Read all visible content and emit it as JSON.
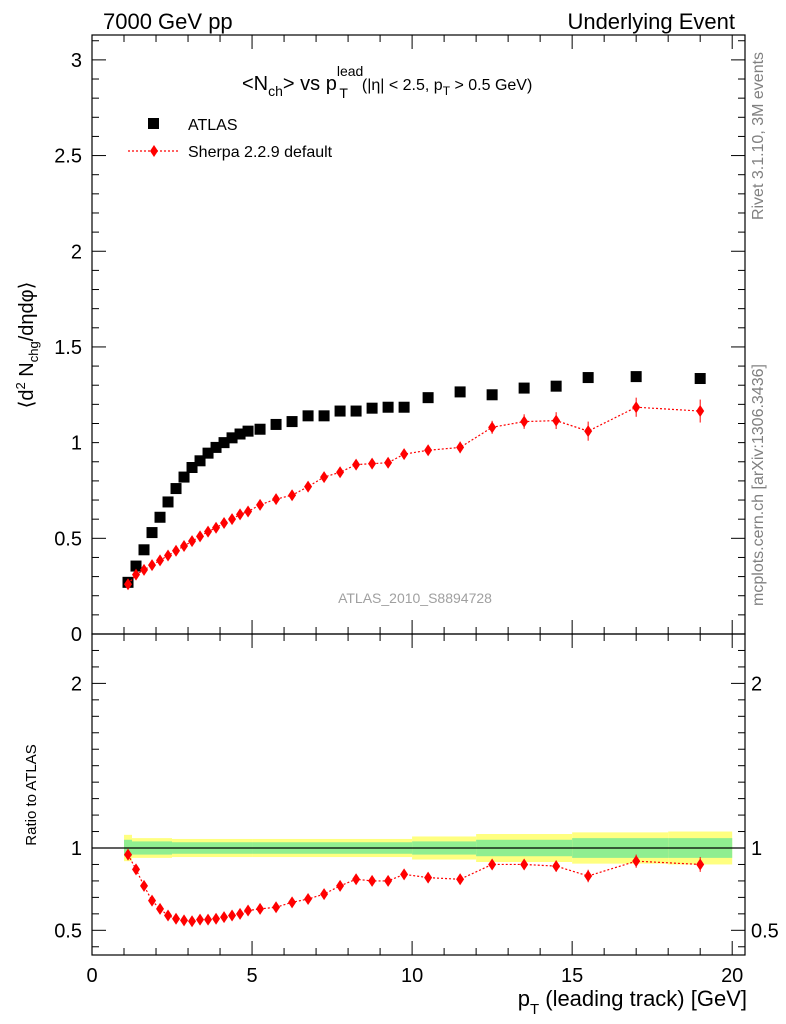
{
  "header": {
    "left": "7000 GeV pp",
    "right": "Underlying Event"
  },
  "side_labels": {
    "rivet": "Rivet 3.1.10,  3M events",
    "mcplots": "mcplots.cern.ch [arXiv:1306.3436]"
  },
  "chart_data": [
    {
      "type": "scatter",
      "title": {
        "open": "<N",
        "sub1": "ch",
        "mid": "> vs p",
        "sup": "lead",
        "sub2": "T",
        "cond_open": "(|η| < 2.5, p",
        "cond_sub": "T",
        "cond_close": " > 0.5 GeV)"
      },
      "ylabel": {
        "open": "⟨d",
        "sup": "2",
        "mid": " N",
        "sub": "chg",
        "close": "/dηdφ⟩"
      },
      "ylim": [
        0,
        3.13
      ],
      "yticks": [
        0.5,
        1,
        1.5,
        2,
        2.5,
        3
      ],
      "ytick_labels": [
        "0.5",
        "1",
        "1.5",
        "2",
        "2.5",
        "3"
      ],
      "zero_label": "0",
      "watermark": "ATLAS_2010_S8894728",
      "legend_position": "top-left",
      "series": [
        {
          "name": "ATLAS",
          "color": "#000000",
          "marker": "square",
          "x": [
            1.125,
            1.375,
            1.625,
            1.875,
            2.125,
            2.375,
            2.625,
            2.875,
            3.125,
            3.375,
            3.625,
            3.875,
            4.125,
            4.375,
            4.625,
            4.875,
            5.25,
            5.75,
            6.25,
            6.75,
            7.25,
            7.75,
            8.25,
            8.75,
            9.25,
            9.75,
            10.5,
            11.5,
            12.5,
            13.5,
            14.5,
            15.5,
            17.0,
            19.0
          ],
          "y": [
            0.27,
            0.355,
            0.44,
            0.53,
            0.61,
            0.69,
            0.76,
            0.82,
            0.87,
            0.905,
            0.945,
            0.975,
            1.0,
            1.025,
            1.045,
            1.06,
            1.07,
            1.095,
            1.11,
            1.14,
            1.14,
            1.165,
            1.165,
            1.18,
            1.185,
            1.185,
            1.235,
            1.265,
            1.25,
            1.285,
            1.295,
            1.34,
            1.345,
            1.335
          ]
        },
        {
          "name": "Sherpa 2.2.9 default",
          "color": "#ff0000",
          "marker": "diamond",
          "x": [
            1.125,
            1.375,
            1.625,
            1.875,
            2.125,
            2.375,
            2.625,
            2.875,
            3.125,
            3.375,
            3.625,
            3.875,
            4.125,
            4.375,
            4.625,
            4.875,
            5.25,
            5.75,
            6.25,
            6.75,
            7.25,
            7.75,
            8.25,
            8.75,
            9.25,
            9.75,
            10.5,
            11.5,
            12.5,
            13.5,
            14.5,
            15.5,
            17.0,
            19.0
          ],
          "y": [
            0.26,
            0.31,
            0.335,
            0.36,
            0.385,
            0.41,
            0.435,
            0.46,
            0.485,
            0.51,
            0.535,
            0.555,
            0.58,
            0.6,
            0.625,
            0.64,
            0.675,
            0.705,
            0.725,
            0.77,
            0.82,
            0.845,
            0.885,
            0.89,
            0.895,
            0.94,
            0.96,
            0.975,
            1.08,
            1.11,
            1.115,
            1.06,
            1.185,
            1.165
          ],
          "yerr": [
            0.01,
            0.01,
            0.01,
            0.01,
            0.01,
            0.01,
            0.01,
            0.01,
            0.01,
            0.01,
            0.01,
            0.01,
            0.01,
            0.01,
            0.012,
            0.012,
            0.012,
            0.014,
            0.014,
            0.016,
            0.016,
            0.018,
            0.02,
            0.02,
            0.022,
            0.024,
            0.026,
            0.03,
            0.034,
            0.038,
            0.044,
            0.05,
            0.05,
            0.06
          ]
        }
      ]
    },
    {
      "type": "scatter",
      "ylabel": "Ratio to ATLAS",
      "xlabel": {
        "p": "p",
        "sub": "T",
        "rest": " (leading track) [GeV]"
      },
      "xlim": [
        0,
        20.4
      ],
      "xticks": [
        0,
        5,
        10,
        15,
        20
      ],
      "xtick_labels": [
        "0",
        "5",
        "10",
        "15",
        "20"
      ],
      "ylim": [
        0.35,
        2.3
      ],
      "yticks": [
        0.5,
        1,
        2
      ],
      "ytick_labels": [
        "0.5",
        "1",
        "2"
      ],
      "reference_line": 1,
      "bands": {
        "color_inner": "#90ee90",
        "color_outer": "#ffff80",
        "edges": [
          1.0,
          1.25,
          2.5,
          5.0,
          10.0,
          12.0,
          15.0,
          18.0,
          20.0
        ],
        "inner": [
          0.05,
          0.04,
          0.035,
          0.035,
          0.04,
          0.05,
          0.06,
          0.06
        ],
        "outer": [
          0.08,
          0.06,
          0.055,
          0.055,
          0.07,
          0.085,
          0.095,
          0.1
        ]
      },
      "series": [
        {
          "name": "Sherpa 2.2.9 default",
          "color": "#ff0000",
          "marker": "diamond",
          "x": [
            1.125,
            1.375,
            1.625,
            1.875,
            2.125,
            2.375,
            2.625,
            2.875,
            3.125,
            3.375,
            3.625,
            3.875,
            4.125,
            4.375,
            4.625,
            4.875,
            5.25,
            5.75,
            6.25,
            6.75,
            7.25,
            7.75,
            8.25,
            8.75,
            9.25,
            9.75,
            10.5,
            11.5,
            12.5,
            13.5,
            14.5,
            15.5,
            17.0,
            19.0
          ],
          "y": [
            0.96,
            0.87,
            0.77,
            0.68,
            0.63,
            0.59,
            0.57,
            0.56,
            0.555,
            0.565,
            0.565,
            0.57,
            0.58,
            0.59,
            0.6,
            0.62,
            0.63,
            0.64,
            0.67,
            0.69,
            0.72,
            0.77,
            0.81,
            0.8,
            0.8,
            0.84,
            0.82,
            0.81,
            0.9,
            0.9,
            0.89,
            0.83,
            0.92,
            0.9
          ],
          "yerr": [
            0.012,
            0.01,
            0.01,
            0.01,
            0.01,
            0.01,
            0.01,
            0.01,
            0.01,
            0.01,
            0.01,
            0.01,
            0.01,
            0.01,
            0.01,
            0.01,
            0.012,
            0.012,
            0.012,
            0.014,
            0.014,
            0.016,
            0.016,
            0.016,
            0.018,
            0.02,
            0.022,
            0.025,
            0.028,
            0.03,
            0.034,
            0.038,
            0.04,
            0.045
          ]
        }
      ]
    }
  ]
}
